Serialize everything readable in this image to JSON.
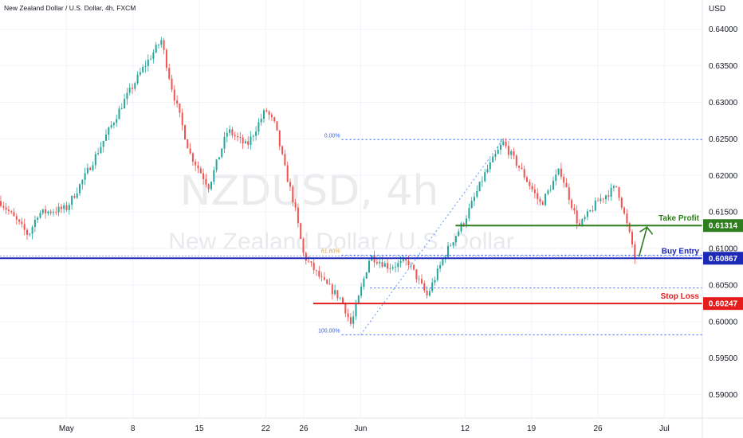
{
  "chart_title": "New Zealand Dollar / U.S. Dollar, 4h, FXCM",
  "watermark": {
    "symbol": "NZDUSD, 4h",
    "name": "New Zealand Dollar / U.S. Dollar"
  },
  "colors": {
    "up": "#26a69a",
    "down": "#ef5350",
    "fib": "#2962ff",
    "take_profit": "#2e7d1e",
    "buy_entry": "#1c28b8",
    "stop_loss": "#e51c1c",
    "fib_618_label": "#e6a23c"
  },
  "chart_data": {
    "type": "candlestick",
    "title": "New Zealand Dollar / U.S. Dollar, 4h, FXCM",
    "currency_label": "USD",
    "ylim": [
      0.5868,
      0.644
    ],
    "xlim": [
      "2023-04-24",
      "2023-07-07"
    ],
    "y_ticks": [
      "0.64000",
      "0.63500",
      "0.63000",
      "0.62500",
      "0.62000",
      "0.61500",
      "0.61000",
      "0.60500",
      "0.60000",
      "0.59500",
      "0.59000"
    ],
    "x_ticks": [
      {
        "label": "May",
        "date": "2023-05-01"
      },
      {
        "label": "8",
        "date": "2023-05-08"
      },
      {
        "label": "15",
        "date": "2023-05-15"
      },
      {
        "label": "22",
        "date": "2023-05-22"
      },
      {
        "label": "26",
        "date": "2023-05-26"
      },
      {
        "label": "Jun",
        "date": "2023-06-01"
      },
      {
        "label": "12",
        "date": "2023-06-12"
      },
      {
        "label": "19",
        "date": "2023-06-19"
      },
      {
        "label": "26",
        "date": "2023-06-26"
      },
      {
        "label": "Jul",
        "date": "2023-07-03"
      }
    ],
    "price_path": [
      [
        "2023-04-24",
        0.6165
      ],
      [
        "2023-04-27",
        0.6118
      ],
      [
        "2023-04-28",
        0.6148
      ],
      [
        "2023-05-01",
        0.6155
      ],
      [
        "2023-05-03",
        0.62
      ],
      [
        "2023-05-05",
        0.625
      ],
      [
        "2023-05-07",
        0.63
      ],
      [
        "2023-05-09",
        0.6345
      ],
      [
        "2023-05-11",
        0.6385
      ],
      [
        "2023-05-12",
        0.6325
      ],
      [
        "2023-05-14",
        0.623
      ],
      [
        "2023-05-16",
        0.6185
      ],
      [
        "2023-05-18",
        0.6262
      ],
      [
        "2023-05-20",
        0.624
      ],
      [
        "2023-05-22",
        0.629
      ],
      [
        "2023-05-23",
        0.6268
      ],
      [
        "2023-05-24",
        0.621
      ],
      [
        "2023-05-25",
        0.616
      ],
      [
        "2023-05-26",
        0.609
      ],
      [
        "2023-05-28",
        0.6055
      ],
      [
        "2023-05-30",
        0.603
      ],
      [
        "2023-05-31",
        0.5995
      ],
      [
        "2023-06-02",
        0.609
      ],
      [
        "2023-06-04",
        0.6075
      ],
      [
        "2023-06-06",
        0.6082
      ],
      [
        "2023-06-08",
        0.6035
      ],
      [
        "2023-06-10",
        0.6095
      ],
      [
        "2023-06-12",
        0.614
      ],
      [
        "2023-06-14",
        0.62
      ],
      [
        "2023-06-16",
        0.6245
      ],
      [
        "2023-06-18",
        0.6205
      ],
      [
        "2023-06-20",
        0.616
      ],
      [
        "2023-06-22",
        0.6208
      ],
      [
        "2023-06-24",
        0.613
      ],
      [
        "2023-06-26",
        0.6165
      ],
      [
        "2023-06-28",
        0.6185
      ],
      [
        "2023-06-29",
        0.6135
      ],
      [
        "2023-06-30",
        0.6086
      ]
    ],
    "levels": [
      {
        "name": "Take Profit",
        "value": 0.61314,
        "label": "0.61314"
      },
      {
        "name": "Buy Entry",
        "value": 0.60867,
        "label": "0.60867"
      },
      {
        "name": "Stop Loss",
        "value": 0.60247,
        "label": "0.60247"
      }
    ],
    "fibonacci": [
      {
        "label": "0.00%",
        "value": 0.6249
      },
      {
        "label": "61.80%",
        "value": 0.6091
      },
      {
        "label": "100.00%",
        "value": 0.5982
      }
    ],
    "extra_dotted_levels": [
      0.6046
    ],
    "annotation": "green arrow pointing up toward Take Profit"
  }
}
